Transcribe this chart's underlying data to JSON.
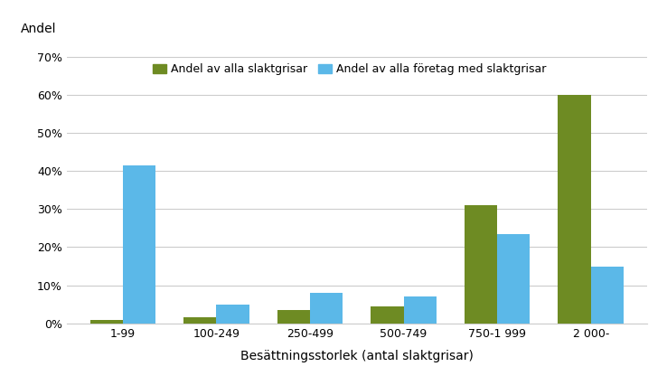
{
  "categories": [
    "1-99",
    "100-249",
    "250-499",
    "500-749",
    "750-1 999",
    "2 000-"
  ],
  "slaktgrisar": [
    1,
    1.5,
    3.5,
    4.5,
    31,
    60
  ],
  "foretag": [
    41.5,
    5,
    8,
    7,
    23.5,
    15
  ],
  "color_slaktgrisar": "#6E8B23",
  "color_foretag": "#5BB8E8",
  "hatch_foretag": ".....",
  "ylabel": "Andel",
  "xlabel": "Besättningsstorlek (antal slaktgrisar)",
  "legend_slaktgrisar": "Andel av alla slaktgrisar",
  "legend_foretag": "Andel av alla företag med slaktgrisar",
  "yticks": [
    0,
    10,
    20,
    30,
    40,
    50,
    60,
    70
  ],
  "ytick_labels": [
    "0%",
    "10%",
    "20%",
    "30%",
    "40%",
    "50%",
    "60%",
    "70%"
  ],
  "ylim": [
    0,
    73
  ],
  "bar_width": 0.35,
  "bg_color": "#ffffff",
  "grid_color": "#cccccc"
}
